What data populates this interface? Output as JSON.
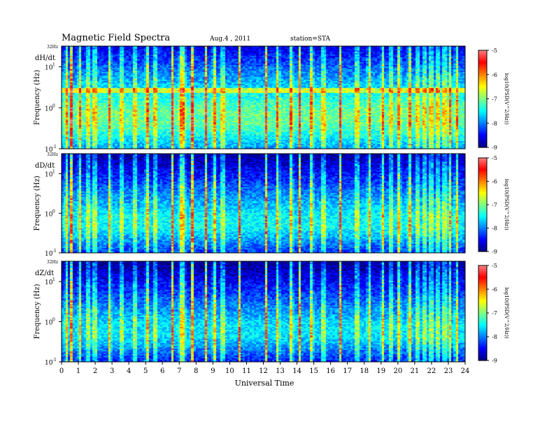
{
  "header": {
    "title": "Magnetic  Field  Spectra",
    "date": "Aug.4  , 2011",
    "station": "station=STA"
  },
  "chart_data": {
    "type": "heatmap",
    "x": {
      "label": "Universal Time",
      "range": [
        0,
        24
      ],
      "ticks": [
        "0",
        "1",
        "2",
        "3",
        "4",
        "5",
        "6",
        "7",
        "8",
        "9",
        "10",
        "11",
        "12",
        "13",
        "14",
        "15",
        "16",
        "17",
        "18",
        "19",
        "20",
        "21",
        "22",
        "23",
        "24"
      ]
    },
    "y": {
      "label": "Frequency  (Hz)",
      "scale": "log",
      "range_hz": [
        0.1,
        32
      ],
      "top_label": "32Hz",
      "tick_labels": [
        "10",
        "10",
        "10"
      ],
      "tick_exponents": [
        "1",
        "0",
        "-1"
      ],
      "tick_values": [
        10,
        1,
        0.1
      ]
    },
    "colorbar": {
      "label": "log10(PSD(V^2/Hz))",
      "range": [
        -9,
        -5
      ],
      "ticks": [
        "-5",
        "-6",
        "-7",
        "-8",
        "-9"
      ]
    },
    "panels": [
      {
        "name": "dH/dt",
        "band_base_level": -7.1,
        "band_top_level": -8.6,
        "resonance_hz": 2.7
      },
      {
        "name": "dD/dt",
        "band_base_level": -7.5,
        "band_top_level": -8.9,
        "resonance_hz": null
      },
      {
        "name": "dZ/dt",
        "band_base_level": -7.6,
        "band_top_level": -8.95,
        "resonance_hz": null
      }
    ],
    "burst_times_ut": [
      0.3,
      0.6,
      1.1,
      1.6,
      2.0,
      2.9,
      3.6,
      4.4,
      5.1,
      5.6,
      6.6,
      7.1,
      7.3,
      7.8,
      8.6,
      9.1,
      9.6,
      10.6,
      12.2,
      12.9,
      13.7,
      14.2,
      14.9,
      15.6,
      16.6,
      17.6,
      18.3,
      19.1,
      19.6,
      20.1,
      20.7,
      21.2,
      21.6,
      22.0,
      22.4,
      22.8,
      23.1,
      23.5
    ],
    "grid": false,
    "legend": "colorbars-right"
  }
}
